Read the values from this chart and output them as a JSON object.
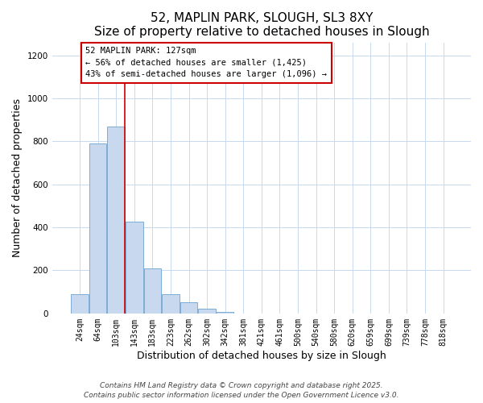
{
  "title": "52, MAPLIN PARK, SLOUGH, SL3 8XY",
  "subtitle": "Size of property relative to detached houses in Slough",
  "xlabel": "Distribution of detached houses by size in Slough",
  "ylabel": "Number of detached properties",
  "bar_labels": [
    "24sqm",
    "64sqm",
    "103sqm",
    "143sqm",
    "183sqm",
    "223sqm",
    "262sqm",
    "302sqm",
    "342sqm",
    "381sqm",
    "421sqm",
    "461sqm",
    "500sqm",
    "540sqm",
    "580sqm",
    "620sqm",
    "659sqm",
    "699sqm",
    "739sqm",
    "778sqm",
    "818sqm"
  ],
  "bar_values": [
    90,
    790,
    870,
    425,
    210,
    90,
    52,
    22,
    8,
    0,
    0,
    0,
    0,
    0,
    0,
    0,
    0,
    0,
    0,
    0,
    0
  ],
  "bar_color": "#c8d8ee",
  "bar_edge_color": "#7badd4",
  "ylim": [
    0,
    1260
  ],
  "yticks": [
    0,
    200,
    400,
    600,
    800,
    1000,
    1200
  ],
  "property_line_x": 2.5,
  "property_line_color": "#cc0000",
  "ann_line1": "52 MAPLIN PARK: 127sqm",
  "ann_line2": "← 56% of detached houses are smaller (1,425)",
  "ann_line3": "43% of semi-detached houses are larger (1,096) →",
  "footer_line1": "Contains HM Land Registry data © Crown copyright and database right 2025.",
  "footer_line2": "Contains public sector information licensed under the Open Government Licence v3.0.",
  "background_color": "#ffffff",
  "grid_color": "#c8d8f0",
  "title_fontsize": 11,
  "subtitle_fontsize": 10,
  "xlabel_fontsize": 9,
  "ylabel_fontsize": 9,
  "tick_fontsize": 7,
  "ann_fontsize": 7.5,
  "footer_fontsize": 6.5
}
